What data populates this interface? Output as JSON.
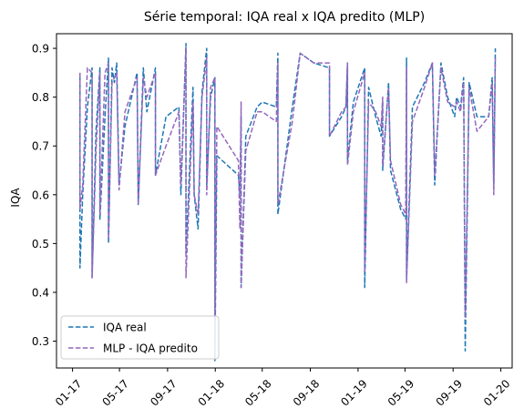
{
  "chart_data": {
    "type": "line",
    "title": "Série temporal: IQA real x IQA predito (MLP)",
    "xlabel": "",
    "ylabel": "IQA",
    "x_axis_kind": "time",
    "xlim": [
      "2016-11-21",
      "2020-01-30"
    ],
    "ylim": [
      0.245,
      0.93
    ],
    "x_ticks": [
      "2017-01-01",
      "2017-05-01",
      "2017-09-01",
      "2018-01-01",
      "2018-05-01",
      "2018-09-01",
      "2019-01-01",
      "2019-05-01",
      "2019-09-01",
      "2020-01-01"
    ],
    "x_tick_labels": [
      "01-17",
      "05-17",
      "09-17",
      "01-18",
      "05-18",
      "09-18",
      "01-19",
      "05-19",
      "09-19",
      "01-20"
    ],
    "y_ticks": [
      0.3,
      0.4,
      0.5,
      0.6,
      0.7,
      0.8,
      0.9
    ],
    "y_tick_labels": [
      "0.3",
      "0.4",
      "0.5",
      "0.6",
      "0.7",
      "0.8",
      "0.9"
    ],
    "grid": false,
    "legend_position": "lower-left",
    "colors": {
      "real": "#1f77b4",
      "pred": "#9467bd"
    },
    "series": [
      {
        "name": "IQA real",
        "style": "dashed",
        "color": "#1f77b4",
        "points": [
          [
            "2017-01-20",
            0.84
          ],
          [
            "2017-01-20",
            0.45
          ],
          [
            "2017-01-27",
            0.6
          ],
          [
            "2017-02-08",
            0.78
          ],
          [
            "2017-02-20",
            0.86
          ],
          [
            "2017-02-20",
            0.43
          ],
          [
            "2017-03-02",
            0.73
          ],
          [
            "2017-03-12",
            0.86
          ],
          [
            "2017-03-12",
            0.55
          ],
          [
            "2017-03-25",
            0.76
          ],
          [
            "2017-04-03",
            0.88
          ],
          [
            "2017-04-03",
            0.5
          ],
          [
            "2017-04-12",
            0.86
          ],
          [
            "2017-04-18",
            0.83
          ],
          [
            "2017-04-24",
            0.87
          ],
          [
            "2017-04-30",
            0.62
          ],
          [
            "2017-05-15",
            0.74
          ],
          [
            "2017-06-15",
            0.85
          ],
          [
            "2017-06-18",
            0.58
          ],
          [
            "2017-07-01",
            0.86
          ],
          [
            "2017-07-10",
            0.77
          ],
          [
            "2017-08-01",
            0.86
          ],
          [
            "2017-08-01",
            0.64
          ],
          [
            "2017-08-28",
            0.76
          ],
          [
            "2017-09-30",
            0.78
          ],
          [
            "2017-10-05",
            0.6
          ],
          [
            "2017-10-18",
            0.91
          ],
          [
            "2017-10-18",
            0.48
          ],
          [
            "2017-11-05",
            0.82
          ],
          [
            "2017-11-08",
            0.6
          ],
          [
            "2017-11-18",
            0.53
          ],
          [
            "2017-11-28",
            0.81
          ],
          [
            "2017-12-10",
            0.9
          ],
          [
            "2017-12-10",
            0.62
          ],
          [
            "2017-12-20",
            0.8
          ],
          [
            "2017-12-31",
            0.84
          ],
          [
            "2017-12-31",
            0.26
          ],
          [
            "2018-01-05",
            0.68
          ],
          [
            "2018-03-01",
            0.64
          ],
          [
            "2018-03-05",
            0.6
          ],
          [
            "2018-03-08",
            0.76
          ],
          [
            "2018-03-08",
            0.41
          ],
          [
            "2018-03-20",
            0.72
          ],
          [
            "2018-04-18",
            0.78
          ],
          [
            "2018-05-01",
            0.79
          ],
          [
            "2018-06-06",
            0.78
          ],
          [
            "2018-06-10",
            0.89
          ],
          [
            "2018-06-10",
            0.56
          ],
          [
            "2018-07-17",
            0.78
          ],
          [
            "2018-08-06",
            0.89
          ],
          [
            "2018-09-10",
            0.87
          ],
          [
            "2018-10-20",
            0.86
          ],
          [
            "2018-10-20",
            0.72
          ],
          [
            "2018-11-20",
            0.76
          ],
          [
            "2018-12-01",
            0.78
          ],
          [
            "2018-12-05",
            0.87
          ],
          [
            "2018-12-05",
            0.67
          ],
          [
            "2018-12-20",
            0.79
          ],
          [
            "2019-01-18",
            0.86
          ],
          [
            "2019-01-18",
            0.41
          ],
          [
            "2019-01-28",
            0.82
          ],
          [
            "2019-02-15",
            0.76
          ],
          [
            "2019-03-01",
            0.72
          ],
          [
            "2019-03-05",
            0.79
          ],
          [
            "2019-03-05",
            0.65
          ],
          [
            "2019-03-20",
            0.83
          ],
          [
            "2019-03-25",
            0.65
          ],
          [
            "2019-04-20",
            0.57
          ],
          [
            "2019-05-03",
            0.55
          ],
          [
            "2019-05-05",
            0.88
          ],
          [
            "2019-05-05",
            0.43
          ],
          [
            "2019-05-20",
            0.78
          ],
          [
            "2019-06-20",
            0.83
          ],
          [
            "2019-07-10",
            0.87
          ],
          [
            "2019-07-16",
            0.62
          ],
          [
            "2019-08-01",
            0.87
          ],
          [
            "2019-08-18",
            0.8
          ],
          [
            "2019-09-05",
            0.76
          ],
          [
            "2019-09-10",
            0.8
          ],
          [
            "2019-09-20",
            0.78
          ],
          [
            "2019-09-28",
            0.84
          ],
          [
            "2019-10-02",
            0.28
          ],
          [
            "2019-10-12",
            0.83
          ],
          [
            "2019-11-01",
            0.76
          ],
          [
            "2019-12-01",
            0.76
          ],
          [
            "2019-12-10",
            0.84
          ],
          [
            "2019-12-14",
            0.62
          ],
          [
            "2019-12-18",
            0.9
          ]
        ]
      },
      {
        "name": "MLP - IQA predito",
        "style": "dashed",
        "color": "#9467bd",
        "points": [
          [
            "2017-01-20",
            0.85
          ],
          [
            "2017-01-20",
            0.57
          ],
          [
            "2017-01-27",
            0.62
          ],
          [
            "2017-02-08",
            0.86
          ],
          [
            "2017-02-20",
            0.85
          ],
          [
            "2017-02-20",
            0.43
          ],
          [
            "2017-03-02",
            0.69
          ],
          [
            "2017-03-12",
            0.85
          ],
          [
            "2017-03-12",
            0.56
          ],
          [
            "2017-03-25",
            0.85
          ],
          [
            "2017-04-03",
            0.87
          ],
          [
            "2017-04-03",
            0.51
          ],
          [
            "2017-04-12",
            0.83
          ],
          [
            "2017-04-18",
            0.84
          ],
          [
            "2017-04-24",
            0.85
          ],
          [
            "2017-04-30",
            0.61
          ],
          [
            "2017-05-15",
            0.77
          ],
          [
            "2017-06-15",
            0.84
          ],
          [
            "2017-06-18",
            0.58
          ],
          [
            "2017-07-01",
            0.84
          ],
          [
            "2017-07-10",
            0.8
          ],
          [
            "2017-08-01",
            0.85
          ],
          [
            "2017-08-01",
            0.64
          ],
          [
            "2017-08-28",
            0.7
          ],
          [
            "2017-09-30",
            0.77
          ],
          [
            "2017-10-05",
            0.62
          ],
          [
            "2017-10-18",
            0.9
          ],
          [
            "2017-10-18",
            0.43
          ],
          [
            "2017-11-05",
            0.79
          ],
          [
            "2017-11-08",
            0.6
          ],
          [
            "2017-11-18",
            0.56
          ],
          [
            "2017-11-28",
            0.8
          ],
          [
            "2017-12-10",
            0.88
          ],
          [
            "2017-12-10",
            0.6
          ],
          [
            "2017-12-20",
            0.82
          ],
          [
            "2017-12-31",
            0.84
          ],
          [
            "2017-12-31",
            0.34
          ],
          [
            "2018-01-05",
            0.74
          ],
          [
            "2018-03-01",
            0.67
          ],
          [
            "2018-03-05",
            0.53
          ],
          [
            "2018-03-08",
            0.79
          ],
          [
            "2018-03-08",
            0.41
          ],
          [
            "2018-03-20",
            0.69
          ],
          [
            "2018-04-18",
            0.77
          ],
          [
            "2018-05-01",
            0.77
          ],
          [
            "2018-06-06",
            0.75
          ],
          [
            "2018-06-10",
            0.87
          ],
          [
            "2018-06-10",
            0.58
          ],
          [
            "2018-07-17",
            0.75
          ],
          [
            "2018-08-06",
            0.89
          ],
          [
            "2018-09-10",
            0.87
          ],
          [
            "2018-10-20",
            0.87
          ],
          [
            "2018-10-20",
            0.72
          ],
          [
            "2018-11-20",
            0.77
          ],
          [
            "2018-12-01",
            0.78
          ],
          [
            "2018-12-05",
            0.87
          ],
          [
            "2018-12-05",
            0.66
          ],
          [
            "2018-12-20",
            0.77
          ],
          [
            "2019-01-18",
            0.85
          ],
          [
            "2019-01-18",
            0.44
          ],
          [
            "2019-01-28",
            0.79
          ],
          [
            "2019-02-15",
            0.77
          ],
          [
            "2019-03-01",
            0.74
          ],
          [
            "2019-03-05",
            0.8
          ],
          [
            "2019-03-05",
            0.66
          ],
          [
            "2019-03-20",
            0.82
          ],
          [
            "2019-03-25",
            0.67
          ],
          [
            "2019-04-20",
            0.58
          ],
          [
            "2019-05-03",
            0.56
          ],
          [
            "2019-05-05",
            0.86
          ],
          [
            "2019-05-05",
            0.42
          ],
          [
            "2019-05-20",
            0.75
          ],
          [
            "2019-06-20",
            0.82
          ],
          [
            "2019-07-10",
            0.87
          ],
          [
            "2019-07-16",
            0.64
          ],
          [
            "2019-08-01",
            0.86
          ],
          [
            "2019-08-18",
            0.79
          ],
          [
            "2019-09-05",
            0.78
          ],
          [
            "2019-09-10",
            0.79
          ],
          [
            "2019-09-20",
            0.77
          ],
          [
            "2019-09-28",
            0.83
          ],
          [
            "2019-10-02",
            0.35
          ],
          [
            "2019-10-12",
            0.82
          ],
          [
            "2019-11-01",
            0.73
          ],
          [
            "2019-12-01",
            0.76
          ],
          [
            "2019-12-10",
            0.83
          ],
          [
            "2019-12-14",
            0.6
          ],
          [
            "2019-12-18",
            0.88
          ]
        ]
      }
    ]
  }
}
